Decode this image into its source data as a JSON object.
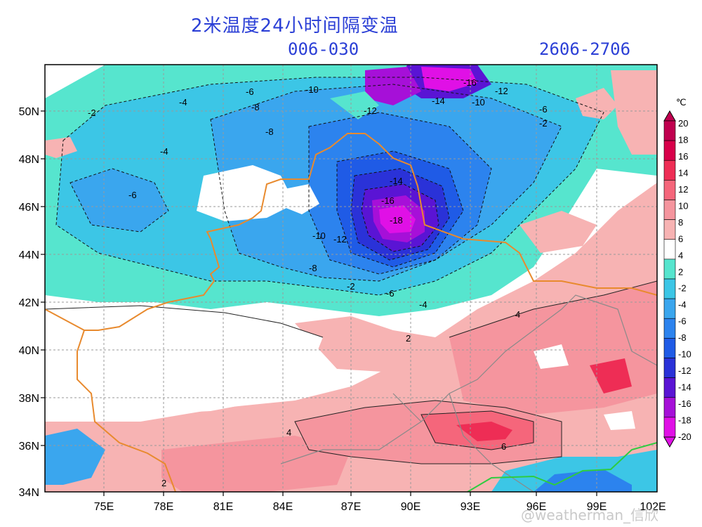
{
  "header": {
    "title": "2米温度24小时间隔变温",
    "forecast_hours": "006-030",
    "date_range": "2606-2706"
  },
  "axes": {
    "lat_labels": [
      "50N",
      "48N",
      "46N",
      "44N",
      "42N",
      "40N",
      "38N",
      "36N",
      "34N"
    ],
    "lon_labels": [
      "75E",
      "78E",
      "81E",
      "84E",
      "87E",
      "90E",
      "93E",
      "96E",
      "99E",
      "102E"
    ]
  },
  "colorbar": {
    "unit": "℃",
    "levels": [
      "20",
      "18",
      "16",
      "14",
      "12",
      "10",
      "8",
      "6",
      "4",
      "2",
      "-2",
      "-4",
      "-6",
      "-8",
      "-10",
      "-12",
      "-14",
      "-16",
      "-18",
      "-20"
    ],
    "colors": [
      "#c0004f",
      "#d8004a",
      "#ee2d55",
      "#f5667b",
      "#f5959e",
      "#f7b3b3",
      "#ffffff",
      "#56e5ce",
      "#3cc6e6",
      "#3aa6ee",
      "#2c83ee",
      "#1f5be6",
      "#2a32d8",
      "#5a14d4",
      "#a610d8",
      "#e010e6"
    ]
  },
  "contour_labels": [
    "-6",
    "-4",
    "-2",
    "-10",
    "-8",
    "-16",
    "-12",
    "-14",
    "-10",
    "-6",
    "-8",
    "-12",
    "-2",
    "-4",
    "-6",
    "-18",
    "-16",
    "-14",
    "-12",
    "-10",
    "-8",
    "-6",
    "-4",
    "-2",
    "2",
    "4",
    "6",
    "4",
    "2"
  ],
  "watermark": "@weatherman_信欣"
}
